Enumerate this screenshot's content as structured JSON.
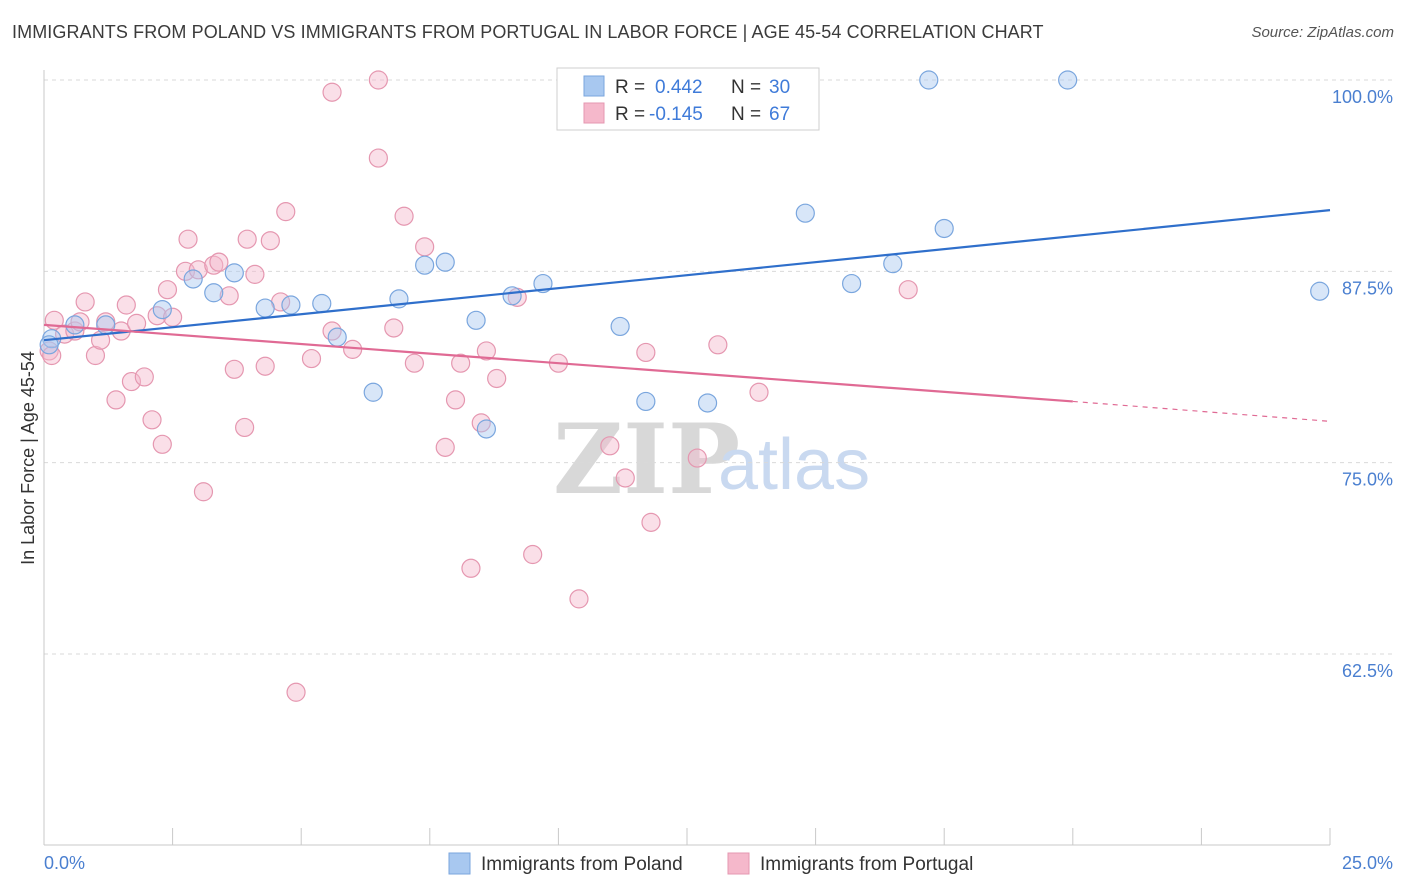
{
  "title": "IMMIGRANTS FROM POLAND VS IMMIGRANTS FROM PORTUGAL IN LABOR FORCE | AGE 45-54 CORRELATION CHART",
  "source": "Source: ZipAtlas.com",
  "watermark": {
    "zip": "ZIP",
    "atlas": "atlas"
  },
  "legend": {
    "rows": [
      {
        "r_label": "R =",
        "r_value": "0.442",
        "n_label": "N =",
        "n_value": "30",
        "color": "#a8c8f0"
      },
      {
        "r_label": "R =",
        "r_value": "-0.145",
        "n_label": "N =",
        "n_value": "67",
        "color": "#f5b8cb"
      }
    ]
  },
  "bottom_legend": [
    {
      "label": "Immigrants from Poland",
      "color": "#a8c8f0"
    },
    {
      "label": "Immigrants from Portugal",
      "color": "#f5b8cb"
    }
  ],
  "chart_data": {
    "type": "scatter",
    "title": "IMMIGRANTS FROM POLAND VS IMMIGRANTS FROM PORTUGAL IN LABOR FORCE | AGE 45-54 CORRELATION CHART",
    "xlabel": "",
    "ylabel": "In Labor Force | Age 45-54",
    "xlim": [
      0,
      25
    ],
    "ylim": [
      50,
      100
    ],
    "x_tick_labels": [
      "0.0%",
      "25.0%"
    ],
    "y_ticks": [
      62.5,
      75.0,
      87.5,
      100.0
    ],
    "y_tick_labels": [
      "62.5%",
      "75.0%",
      "87.5%",
      "100.0%"
    ],
    "grid": "horizontal dashed",
    "series": [
      {
        "name": "Immigrants from Poland",
        "color": "#a8c8f0",
        "line_color": "#2f6fcb",
        "trend": {
          "x": [
            0,
            25
          ],
          "y": [
            83.0,
            91.5
          ]
        },
        "points": [
          [
            0.15,
            83.1
          ],
          [
            0.6,
            84.0
          ],
          [
            1.2,
            84.0
          ],
          [
            2.3,
            85.0
          ],
          [
            2.9,
            87.0
          ],
          [
            3.3,
            86.1
          ],
          [
            3.7,
            87.4
          ],
          [
            4.3,
            85.1
          ],
          [
            4.8,
            85.3
          ],
          [
            5.4,
            85.4
          ],
          [
            5.7,
            83.2
          ],
          [
            6.4,
            79.6
          ],
          [
            6.9,
            85.7
          ],
          [
            7.4,
            87.9
          ],
          [
            7.8,
            88.1
          ],
          [
            8.4,
            84.3
          ],
          [
            8.6,
            77.2
          ],
          [
            9.1,
            85.9
          ],
          [
            9.7,
            86.7
          ],
          [
            11.2,
            83.9
          ],
          [
            11.7,
            79.0
          ],
          [
            12.9,
            78.9
          ],
          [
            14.8,
            91.3
          ],
          [
            15.7,
            86.7
          ],
          [
            16.5,
            88.0
          ],
          [
            17.2,
            100.0
          ],
          [
            17.5,
            90.3
          ],
          [
            19.9,
            100.0
          ],
          [
            24.8,
            86.2
          ],
          [
            0.1,
            82.7
          ]
        ]
      },
      {
        "name": "Immigrants from Portugal",
        "color": "#f5b8cb",
        "line_color": "#e06a94",
        "trend": {
          "x": [
            0,
            20
          ],
          "y": [
            84.0,
            79.0
          ]
        },
        "trend_dashed": {
          "x": [
            20,
            25
          ],
          "y": [
            79.0,
            77.7
          ]
        },
        "points": [
          [
            0.1,
            82.3
          ],
          [
            0.2,
            84.3
          ],
          [
            0.4,
            83.4
          ],
          [
            0.6,
            83.6
          ],
          [
            0.7,
            84.2
          ],
          [
            0.8,
            85.5
          ],
          [
            1.0,
            82.0
          ],
          [
            1.1,
            83.0
          ],
          [
            1.2,
            84.2
          ],
          [
            1.4,
            79.1
          ],
          [
            1.5,
            83.6
          ],
          [
            1.6,
            85.3
          ],
          [
            1.7,
            80.3
          ],
          [
            1.8,
            84.1
          ],
          [
            1.95,
            80.6
          ],
          [
            2.1,
            77.8
          ],
          [
            2.2,
            84.6
          ],
          [
            2.3,
            76.2
          ],
          [
            2.4,
            86.3
          ],
          [
            2.5,
            84.5
          ],
          [
            2.75,
            87.5
          ],
          [
            2.8,
            89.6
          ],
          [
            3.0,
            87.6
          ],
          [
            3.1,
            73.1
          ],
          [
            3.3,
            87.9
          ],
          [
            3.4,
            88.1
          ],
          [
            3.6,
            85.9
          ],
          [
            3.7,
            81.1
          ],
          [
            3.9,
            77.3
          ],
          [
            3.95,
            89.6
          ],
          [
            4.1,
            87.3
          ],
          [
            4.3,
            81.3
          ],
          [
            4.4,
            89.5
          ],
          [
            4.6,
            85.5
          ],
          [
            4.7,
            91.4
          ],
          [
            4.9,
            60.0
          ],
          [
            5.2,
            81.8
          ],
          [
            5.6,
            83.6
          ],
          [
            5.6,
            99.2
          ],
          [
            6.0,
            82.4
          ],
          [
            6.5,
            94.9
          ],
          [
            6.5,
            100.0
          ],
          [
            6.8,
            83.8
          ],
          [
            7.0,
            91.1
          ],
          [
            7.2,
            81.5
          ],
          [
            7.4,
            89.1
          ],
          [
            7.8,
            76.0
          ],
          [
            8.0,
            79.1
          ],
          [
            8.1,
            81.5
          ],
          [
            8.3,
            68.1
          ],
          [
            8.5,
            77.6
          ],
          [
            8.6,
            82.3
          ],
          [
            8.8,
            80.5
          ],
          [
            9.2,
            85.8
          ],
          [
            9.5,
            69.0
          ],
          [
            10.0,
            81.5
          ],
          [
            10.4,
            66.1
          ],
          [
            11.0,
            76.1
          ],
          [
            11.3,
            74.0
          ],
          [
            11.7,
            82.2
          ],
          [
            11.8,
            71.1
          ],
          [
            12.7,
            75.3
          ],
          [
            13.1,
            82.7
          ],
          [
            13.9,
            79.6
          ],
          [
            14.8,
            100.0
          ],
          [
            16.8,
            86.3
          ],
          [
            0.15,
            82.0
          ]
        ]
      }
    ]
  }
}
